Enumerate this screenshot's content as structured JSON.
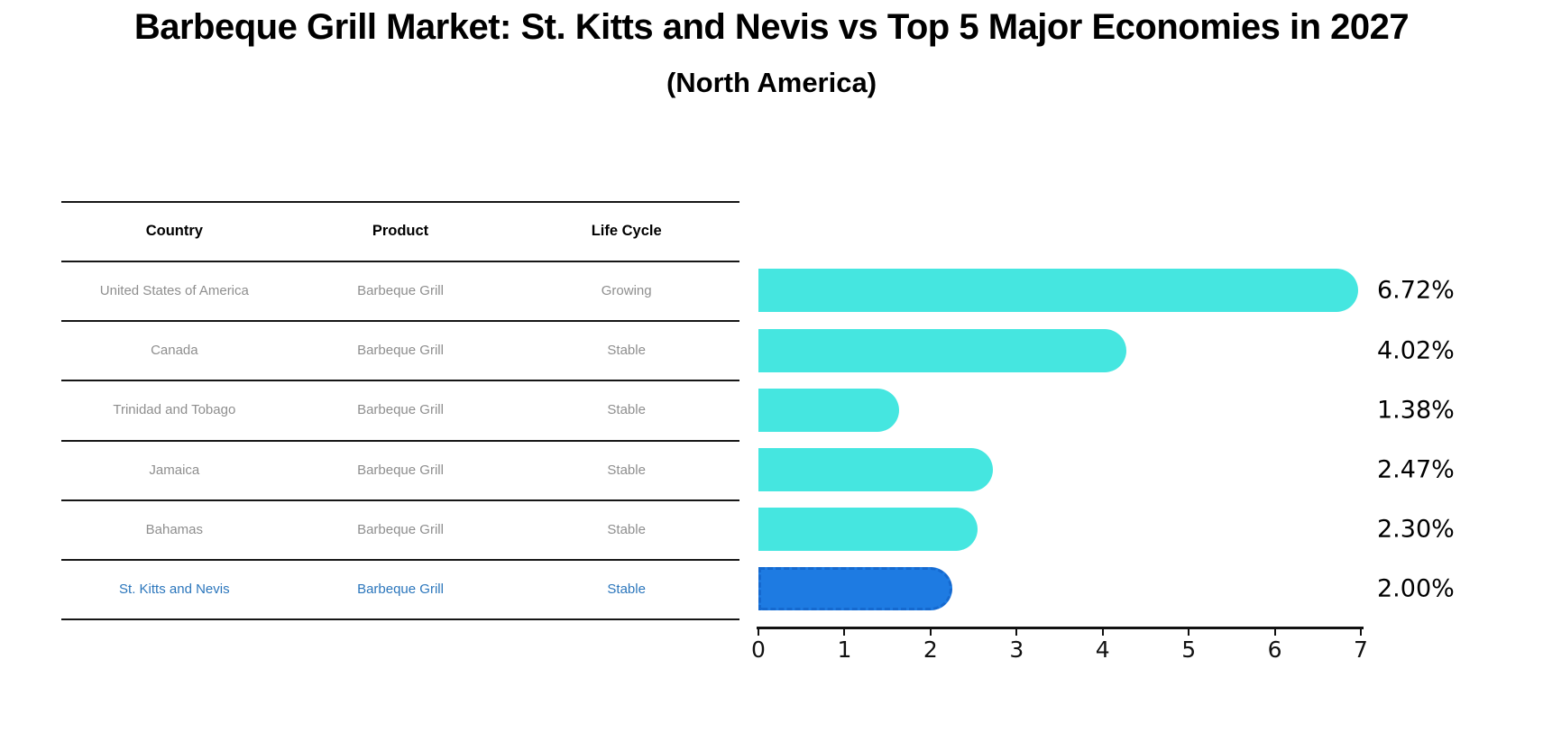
{
  "chart_data": {
    "type": "bar",
    "orientation": "horizontal",
    "title": "Barbeque Grill Market: St. Kitts and Nevis vs Top 5 Major Economies in 2027",
    "subtitle": "(North America)",
    "categories": [
      "United States of America",
      "Canada",
      "Trinidad and Tobago",
      "Jamaica",
      "Bahamas",
      "St. Kitts and Nevis"
    ],
    "values": [
      6.72,
      4.02,
      1.38,
      2.47,
      2.3,
      2.0
    ],
    "value_labels": [
      "6.72%",
      "4.02%",
      "1.38%",
      "2.47%",
      "2.30%",
      "2.00%"
    ],
    "xlim": [
      0,
      7
    ],
    "x_ticks": [
      "0",
      "1",
      "2",
      "3",
      "4",
      "5",
      "6",
      "7"
    ],
    "grid": false,
    "legend": false,
    "bar_color": "#45E6E0",
    "highlight_index": 5,
    "highlight_bar_color": "#1E7BE2",
    "highlight_bar_border_color": "#1569CF",
    "highlight_bar_border_style": "dashed"
  },
  "table": {
    "columns": [
      "Country",
      "Product",
      "Life Cycle"
    ],
    "rows": [
      {
        "country": "United States of America",
        "product": "Barbeque Grill",
        "life_cycle": "Growing",
        "highlight": false
      },
      {
        "country": "Canada",
        "product": "Barbeque Grill",
        "life_cycle": "Stable",
        "highlight": false
      },
      {
        "country": "Trinidad and Tobago",
        "product": "Barbeque Grill",
        "life_cycle": "Stable",
        "highlight": false
      },
      {
        "country": "Jamaica",
        "product": "Barbeque Grill",
        "life_cycle": "Stable",
        "highlight": false
      },
      {
        "country": "Bahamas",
        "product": "Barbeque Grill",
        "life_cycle": "Stable",
        "highlight": false
      },
      {
        "country": "St. Kitts and Nevis",
        "product": "Barbeque Grill",
        "life_cycle": "Stable",
        "highlight": true
      }
    ],
    "normal_text_color": "#8E8E8E",
    "highlight_text_color": "#2B76BC"
  }
}
